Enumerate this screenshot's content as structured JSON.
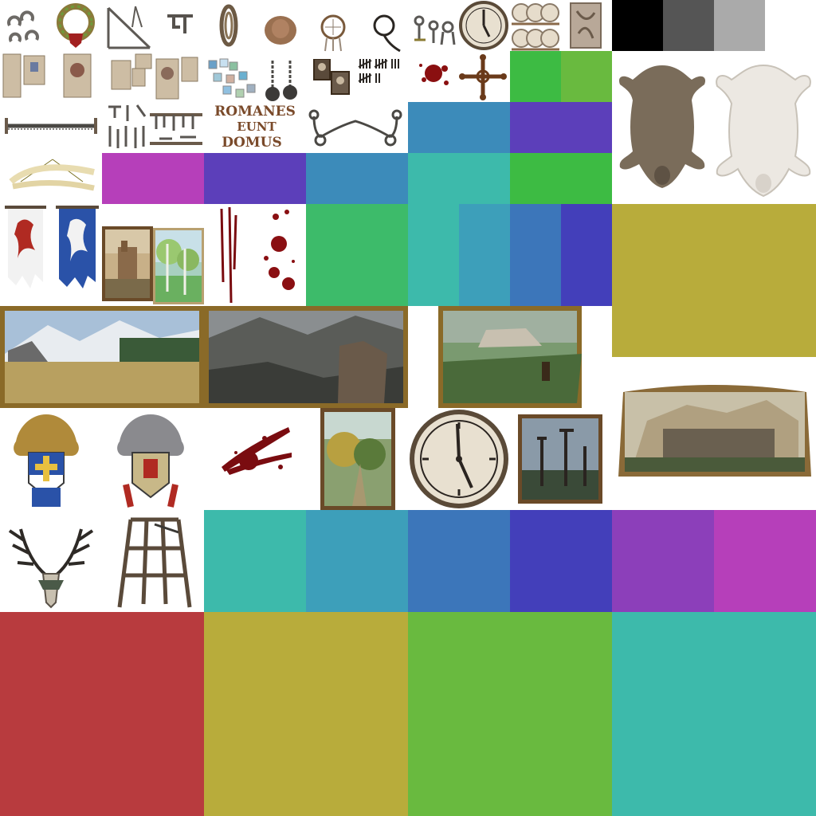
{
  "atlas": {
    "background": "#ffffff",
    "sign": {
      "lines": [
        "ROMANES",
        "EUNT",
        "DOMUS"
      ],
      "color": "#7a4a2a"
    },
    "swatches": [
      {
        "name": "swatch-black",
        "color": "#000000"
      },
      {
        "name": "swatch-dark-gray",
        "color": "#555555"
      },
      {
        "name": "swatch-light-gray",
        "color": "#aaaaaa"
      },
      {
        "name": "swatch-green-r2a",
        "color": "#3dbb43"
      },
      {
        "name": "swatch-lime-r2b",
        "color": "#69ba3f"
      },
      {
        "name": "swatch-blue-r3a",
        "color": "#3c8bba"
      },
      {
        "name": "swatch-violet-r3b",
        "color": "#5c3fba"
      },
      {
        "name": "swatch-magenta-r4a",
        "color": "#b63fba"
      },
      {
        "name": "swatch-indigo-r4b",
        "color": "#5c3fba"
      },
      {
        "name": "swatch-blue-r4c",
        "color": "#3c8bba"
      },
      {
        "name": "swatch-teal-r4d",
        "color": "#3dbaab"
      },
      {
        "name": "swatch-green-r4e",
        "color": "#3dbb43"
      },
      {
        "name": "swatch-green-r5a",
        "color": "#3dbb6a"
      },
      {
        "name": "swatch-teal-r5b",
        "color": "#3dbaab"
      },
      {
        "name": "swatch-cyan-r5c",
        "color": "#3d9fba"
      },
      {
        "name": "swatch-blue-r5d",
        "color": "#3c76ba"
      },
      {
        "name": "swatch-indigo-r5e",
        "color": "#433fba"
      },
      {
        "name": "swatch-olive-large",
        "color": "#b8ac3b"
      },
      {
        "name": "swatch-teal-r9a",
        "color": "#3dbaab"
      },
      {
        "name": "swatch-cyan-r9b",
        "color": "#3d9fba"
      },
      {
        "name": "swatch-blue-r9c",
        "color": "#3c76ba"
      },
      {
        "name": "swatch-indigo-r9d",
        "color": "#433fba"
      },
      {
        "name": "swatch-purple-r9e",
        "color": "#8c3fba"
      },
      {
        "name": "swatch-magenta-r9f",
        "color": "#b63fba"
      },
      {
        "name": "swatch-red-big",
        "color": "#b83b3e"
      },
      {
        "name": "swatch-olive-big",
        "color": "#b8ac3b"
      },
      {
        "name": "swatch-lime-big",
        "color": "#69ba3f"
      },
      {
        "name": "swatch-teal-big",
        "color": "#3dbaab"
      }
    ]
  }
}
